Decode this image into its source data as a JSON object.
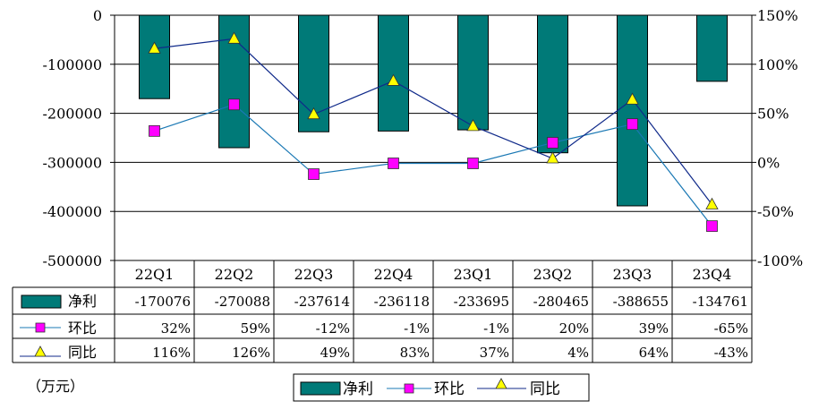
{
  "chart_data": {
    "type": "bar",
    "categories": [
      "22Q1",
      "22Q2",
      "22Q3",
      "22Q4",
      "23Q1",
      "23Q2",
      "23Q3",
      "23Q4"
    ],
    "series": [
      {
        "name": "净利",
        "kind": "bar",
        "axis": "left",
        "color": "#007a78",
        "values": [
          -170076,
          -270088,
          -237614,
          -236118,
          -233695,
          -280465,
          -388655,
          -134761
        ],
        "labels": [
          "-170076",
          "-270088",
          "-237614",
          "-236118",
          "-233695",
          "-280465",
          "-388655",
          "-134761"
        ]
      },
      {
        "name": "环比",
        "kind": "line",
        "axis": "right",
        "color": "#1a78b4",
        "marker": "square",
        "marker_color": "#ff00ff",
        "values": [
          32,
          59,
          -12,
          -1,
          -1,
          20,
          39,
          -65
        ],
        "labels": [
          "32%",
          "59%",
          "-12%",
          "-1%",
          "-1%",
          "20%",
          "39%",
          "-65%"
        ]
      },
      {
        "name": "同比",
        "kind": "line",
        "axis": "right",
        "color": "#102a8a",
        "marker": "triangle",
        "marker_color": "#ffff00",
        "values": [
          116,
          126,
          49,
          83,
          37,
          4,
          64,
          -43
        ],
        "labels": [
          "116%",
          "126%",
          "49%",
          "83%",
          "37%",
          "4%",
          "64%",
          "-43%"
        ]
      }
    ],
    "y_left": {
      "min": -500000,
      "max": 0,
      "ticks": [
        0,
        -100000,
        -200000,
        -300000,
        -400000,
        -500000
      ],
      "tick_labels": [
        "0",
        "-100000",
        "-200000",
        "-300000",
        "-400000",
        "-500000"
      ]
    },
    "y_right": {
      "min": -100,
      "max": 150,
      "ticks": [
        150,
        100,
        50,
        0,
        -50,
        -100
      ],
      "tick_labels": [
        "150%",
        "100%",
        "50%",
        "0%",
        "-50%",
        "-100%"
      ]
    },
    "grid": true,
    "legend": [
      "净利",
      "环比",
      "同比"
    ],
    "unit_note": "（万元）"
  }
}
